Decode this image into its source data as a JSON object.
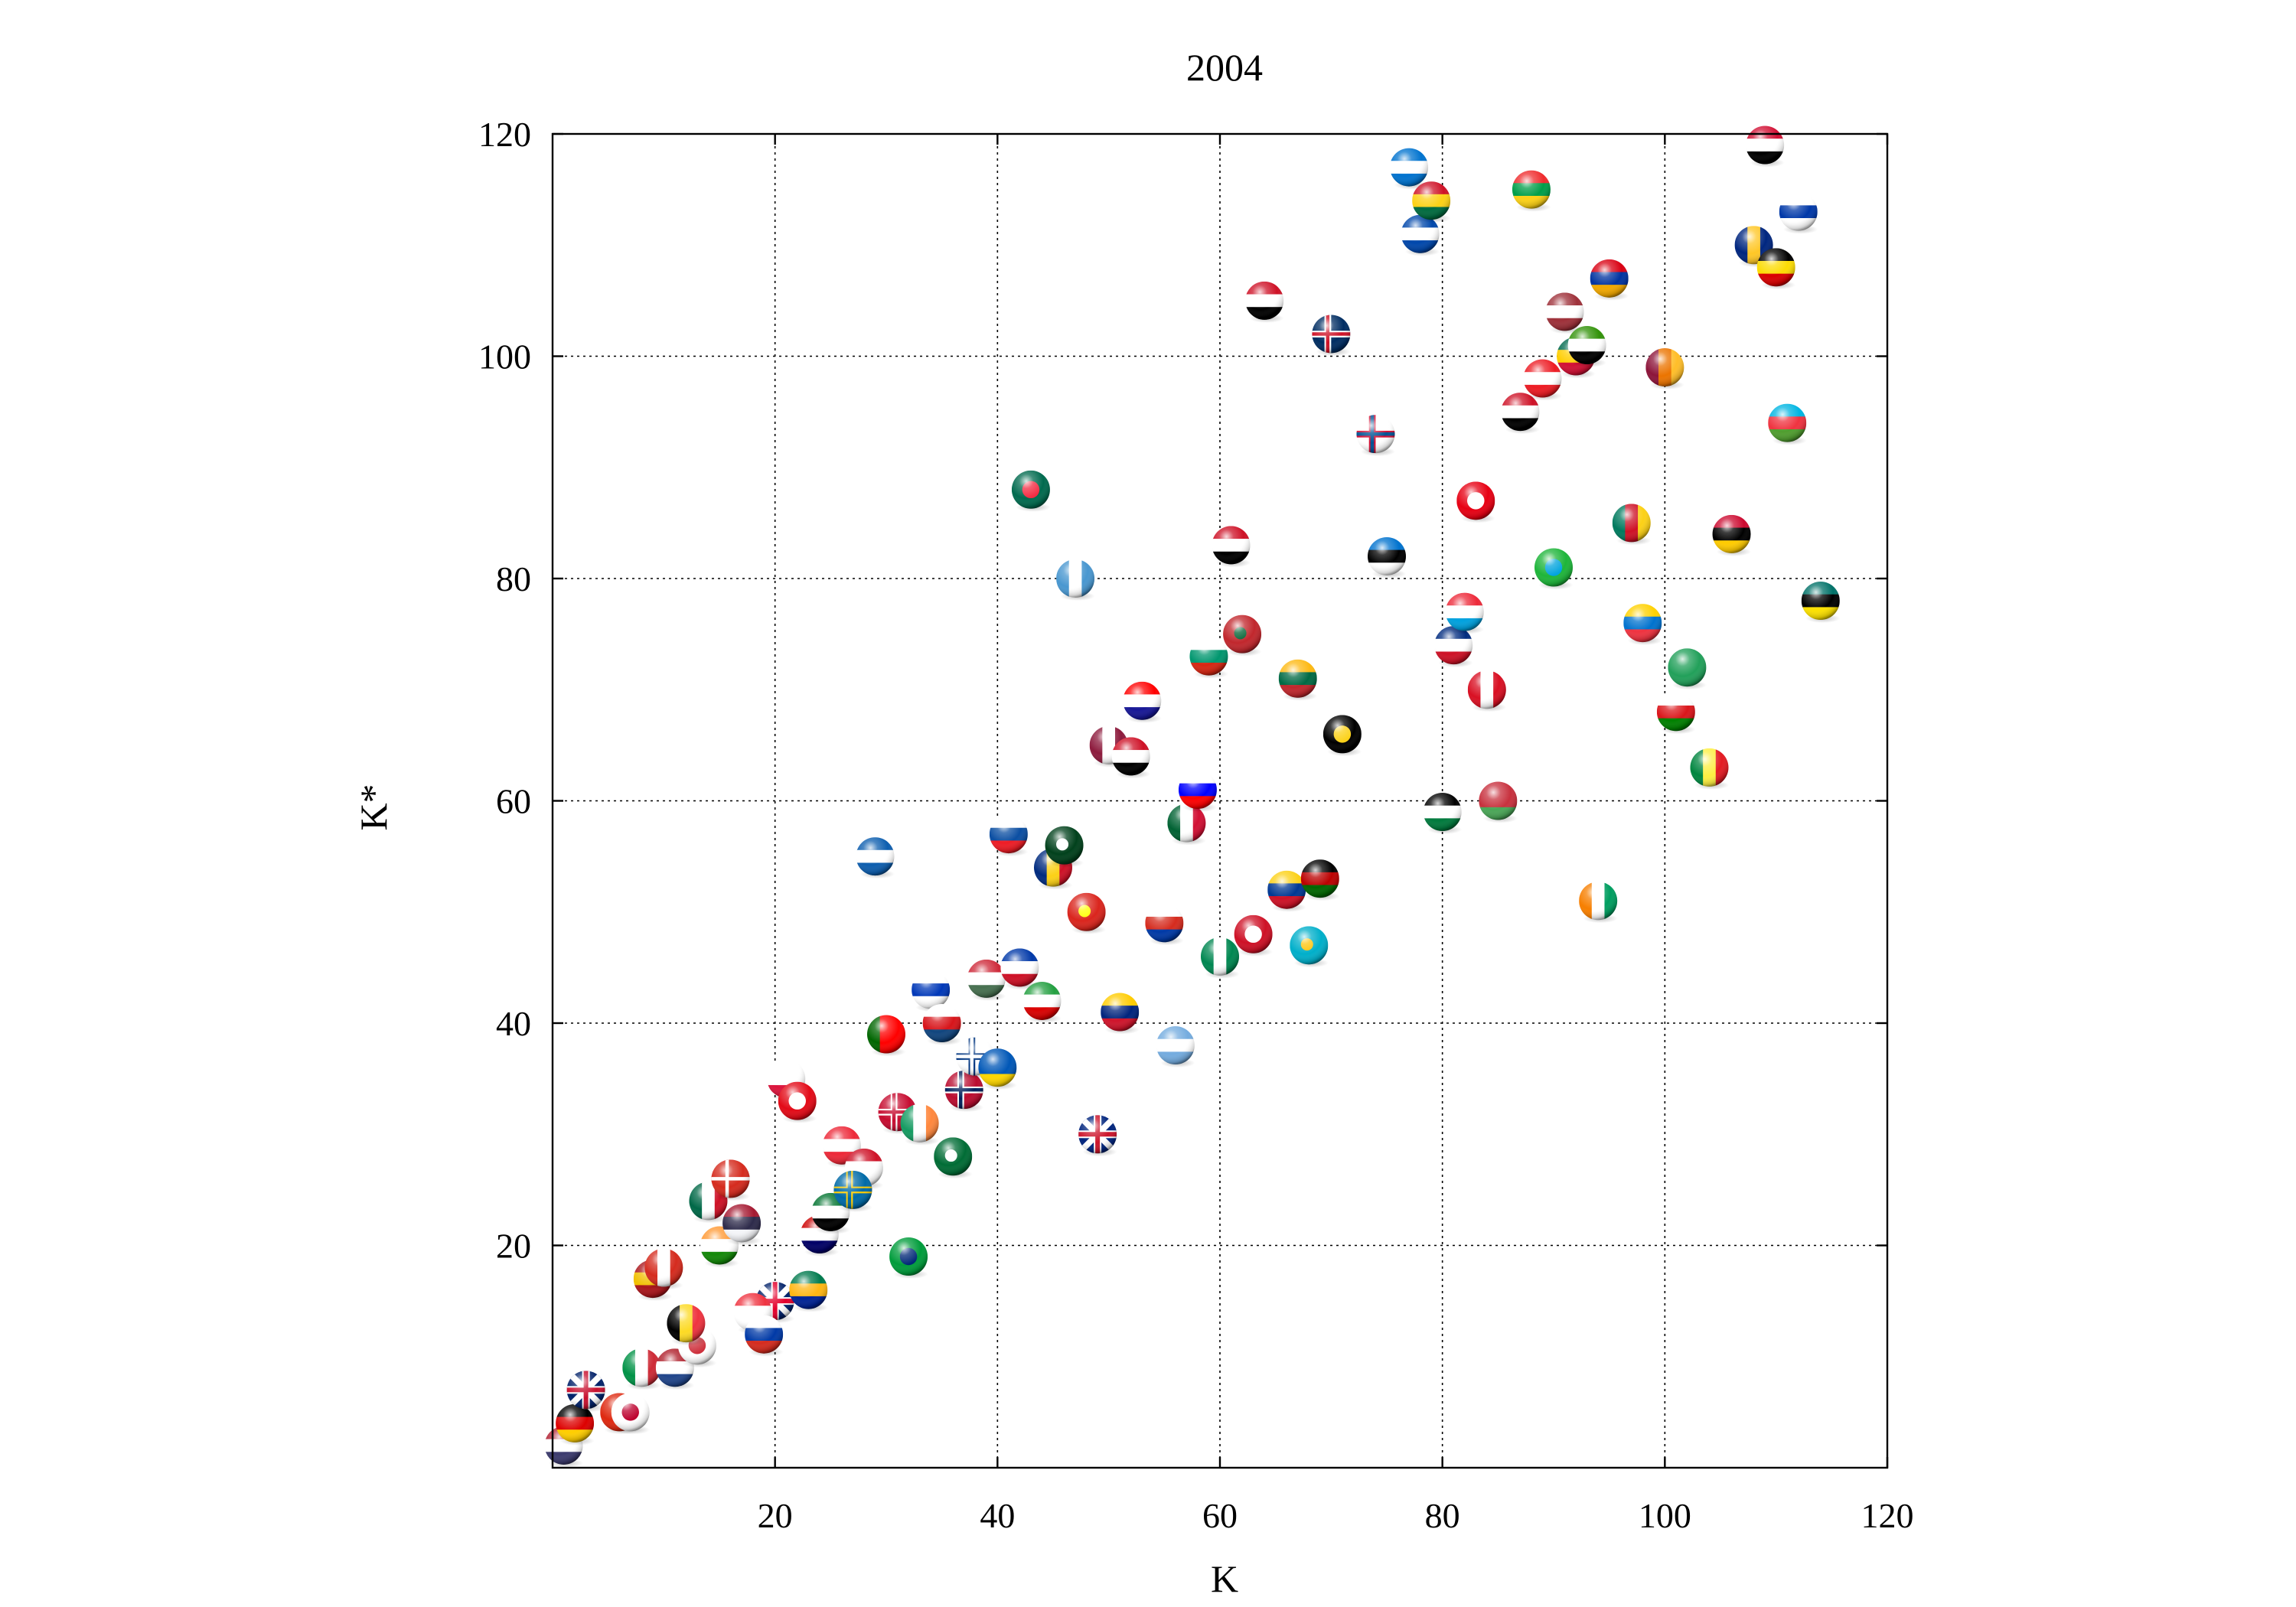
{
  "chart_data": {
    "type": "scatter",
    "title": "2004",
    "xlabel": "K",
    "ylabel": "K*",
    "xlim": [
      0,
      120
    ],
    "ylim": [
      0,
      120
    ],
    "xticks": [
      "20",
      "40",
      "60",
      "80",
      "100",
      "120"
    ],
    "yticks": [
      "20",
      "40",
      "60",
      "80",
      "100",
      "120"
    ],
    "grid": true,
    "marker": "country-flag-sphere",
    "points": [
      {
        "x": 1,
        "y": 2,
        "flag": "us",
        "colors": [
          "#b22234",
          "#ffffff",
          "#3c3b6e"
        ],
        "style": "h"
      },
      {
        "x": 2,
        "y": 4,
        "flag": "de",
        "colors": [
          "#000000",
          "#dd0000",
          "#ffce00"
        ],
        "style": "h"
      },
      {
        "x": 3,
        "y": 7,
        "flag": "uk",
        "colors": [
          "#012169",
          "#ffffff",
          "#c8102e"
        ],
        "style": "x"
      },
      {
        "x": 6,
        "y": 5,
        "flag": "cn",
        "colors": [
          "#de2910",
          "#de2910",
          "#ffde00"
        ],
        "style": "s"
      },
      {
        "x": 7,
        "y": 5,
        "flag": "jp",
        "colors": [
          "#ffffff",
          "#ffffff",
          "#bc002d"
        ],
        "style": "d"
      },
      {
        "x": 8,
        "y": 9,
        "flag": "it",
        "colors": [
          "#009246",
          "#ffffff",
          "#ce2b37"
        ],
        "style": "v"
      },
      {
        "x": 11,
        "y": 9,
        "flag": "nl",
        "colors": [
          "#ae1c28",
          "#ffffff",
          "#21468b"
        ],
        "style": "h"
      },
      {
        "x": 13,
        "y": 11,
        "flag": "kr",
        "colors": [
          "#ffffff",
          "#ffffff",
          "#cd2e3a"
        ],
        "style": "d"
      },
      {
        "x": 12,
        "y": 13,
        "flag": "be",
        "colors": [
          "#000000",
          "#fdda24",
          "#ef3340"
        ],
        "style": "v"
      },
      {
        "x": 9,
        "y": 17,
        "flag": "es",
        "colors": [
          "#aa151b",
          "#f1bf00",
          "#aa151b"
        ],
        "style": "h"
      },
      {
        "x": 10,
        "y": 18,
        "flag": "ca",
        "colors": [
          "#d52b1e",
          "#ffffff",
          "#d52b1e"
        ],
        "style": "v"
      },
      {
        "x": 15,
        "y": 20,
        "flag": "in",
        "colors": [
          "#ff9933",
          "#ffffff",
          "#138808"
        ],
        "style": "h"
      },
      {
        "x": 14,
        "y": 24,
        "flag": "mx",
        "colors": [
          "#006847",
          "#ffffff",
          "#ce1126"
        ],
        "style": "v"
      },
      {
        "x": 16,
        "y": 26,
        "flag": "ch",
        "colors": [
          "#d52b1e",
          "#d52b1e",
          "#ffffff"
        ],
        "style": "p"
      },
      {
        "x": 17,
        "y": 22,
        "flag": "th",
        "colors": [
          "#a51931",
          "#2d2a4a",
          "#f4f5f8"
        ],
        "style": "h"
      },
      {
        "x": 20,
        "y": 15,
        "flag": "au",
        "colors": [
          "#012169",
          "#012169",
          "#e4002b"
        ],
        "style": "x"
      },
      {
        "x": 18,
        "y": 14,
        "flag": "sg",
        "colors": [
          "#ef3340",
          "#ffffff",
          "#ffffff"
        ],
        "style": "h"
      },
      {
        "x": 19,
        "y": 12,
        "flag": "ru",
        "colors": [
          "#ffffff",
          "#0039a6",
          "#d52b1e"
        ],
        "style": "h"
      },
      {
        "x": 23,
        "y": 16,
        "flag": "za",
        "colors": [
          "#007a4d",
          "#ffb612",
          "#002395"
        ],
        "style": "h"
      },
      {
        "x": 21,
        "y": 35,
        "flag": "pl",
        "colors": [
          "#ffffff",
          "#ffffff",
          "#dc143c"
        ],
        "style": "h"
      },
      {
        "x": 22,
        "y": 33,
        "flag": "tr",
        "colors": [
          "#e30a17",
          "#e30a17",
          "#ffffff"
        ],
        "style": "d"
      },
      {
        "x": 24,
        "y": 21,
        "flag": "my",
        "colors": [
          "#cc0001",
          "#ffffff",
          "#010066"
        ],
        "style": "h"
      },
      {
        "x": 25,
        "y": 23,
        "flag": "ae",
        "colors": [
          "#00732f",
          "#ffffff",
          "#000000"
        ],
        "style": "h"
      },
      {
        "x": 26,
        "y": 29,
        "flag": "at",
        "colors": [
          "#ed2939",
          "#ffffff",
          "#ed2939"
        ],
        "style": "h"
      },
      {
        "x": 28,
        "y": 27,
        "flag": "id",
        "colors": [
          "#ce1126",
          "#ffffff",
          "#ffffff"
        ],
        "style": "h"
      },
      {
        "x": 27,
        "y": 25,
        "flag": "se",
        "colors": [
          "#006aa7",
          "#fecc00",
          "#006aa7"
        ],
        "style": "p"
      },
      {
        "x": 30,
        "y": 39,
        "flag": "pt",
        "colors": [
          "#006600",
          "#ff0000",
          "#ff0000"
        ],
        "style": "v"
      },
      {
        "x": 29,
        "y": 55,
        "flag": "gr",
        "colors": [
          "#0d5eaf",
          "#ffffff",
          "#0d5eaf"
        ],
        "style": "h"
      },
      {
        "x": 31,
        "y": 32,
        "flag": "dk",
        "colors": [
          "#c60c30",
          "#ffffff",
          "#c60c30"
        ],
        "style": "p"
      },
      {
        "x": 32,
        "y": 19,
        "flag": "br",
        "colors": [
          "#009c3b",
          "#ffdf00",
          "#002776"
        ],
        "style": "d"
      },
      {
        "x": 33,
        "y": 31,
        "flag": "ie",
        "colors": [
          "#169b62",
          "#ffffff",
          "#ff883e"
        ],
        "style": "v"
      },
      {
        "x": 34,
        "y": 43,
        "flag": "il",
        "colors": [
          "#ffffff",
          "#0038b8",
          "#ffffff"
        ],
        "style": "h"
      },
      {
        "x": 35,
        "y": 40,
        "flag": "cz",
        "colors": [
          "#ffffff",
          "#d7141a",
          "#11457e"
        ],
        "style": "h"
      },
      {
        "x": 36,
        "y": 28,
        "flag": "sa",
        "colors": [
          "#006c35",
          "#006c35",
          "#ffffff"
        ],
        "style": "s"
      },
      {
        "x": 37,
        "y": 34,
        "flag": "no",
        "colors": [
          "#ba0c2f",
          "#ffffff",
          "#00205b"
        ],
        "style": "p"
      },
      {
        "x": 38,
        "y": 37,
        "flag": "fi",
        "colors": [
          "#ffffff",
          "#003580",
          "#ffffff"
        ],
        "style": "p"
      },
      {
        "x": 39,
        "y": 44,
        "flag": "hu",
        "colors": [
          "#ce2939",
          "#ffffff",
          "#477050"
        ],
        "style": "h"
      },
      {
        "x": 40,
        "y": 36,
        "flag": "ua",
        "colors": [
          "#0057b7",
          "#0057b7",
          "#ffd700"
        ],
        "style": "h"
      },
      {
        "x": 41,
        "y": 57,
        "flag": "sk",
        "colors": [
          "#ffffff",
          "#0b4ea2",
          "#ee1c25"
        ],
        "style": "h"
      },
      {
        "x": 42,
        "y": 45,
        "flag": "ph",
        "colors": [
          "#0038a8",
          "#ffffff",
          "#ce1126"
        ],
        "style": "h"
      },
      {
        "x": 43,
        "y": 88,
        "flag": "bd",
        "colors": [
          "#006a4e",
          "#006a4e",
          "#f42a41"
        ],
        "style": "d"
      },
      {
        "x": 44,
        "y": 42,
        "flag": "ir",
        "colors": [
          "#239f40",
          "#ffffff",
          "#da0000"
        ],
        "style": "h"
      },
      {
        "x": 45,
        "y": 54,
        "flag": "ro",
        "colors": [
          "#002b7f",
          "#fcd116",
          "#ce1126"
        ],
        "style": "v"
      },
      {
        "x": 46,
        "y": 56,
        "flag": "pk",
        "colors": [
          "#01411c",
          "#01411c",
          "#ffffff"
        ],
        "style": "s"
      },
      {
        "x": 47,
        "y": 80,
        "flag": "gt",
        "colors": [
          "#4997d0",
          "#ffffff",
          "#4997d0"
        ],
        "style": "v"
      },
      {
        "x": 48,
        "y": 50,
        "flag": "vn",
        "colors": [
          "#da251d",
          "#da251d",
          "#ffff00"
        ],
        "style": "s"
      },
      {
        "x": 49,
        "y": 30,
        "flag": "nz",
        "colors": [
          "#00247d",
          "#00247d",
          "#cc142b"
        ],
        "style": "x"
      },
      {
        "x": 50,
        "y": 65,
        "flag": "qa",
        "colors": [
          "#8d1b3d",
          "#ffffff",
          "#8d1b3d"
        ],
        "style": "v"
      },
      {
        "x": 51,
        "y": 41,
        "flag": "ve",
        "colors": [
          "#ffcc00",
          "#00247d",
          "#cf142b"
        ],
        "style": "h"
      },
      {
        "x": 52,
        "y": 64,
        "flag": "kw",
        "colors": [
          "#ce1126",
          "#ffffff",
          "#000000"
        ],
        "style": "h"
      },
      {
        "x": 53,
        "y": 69,
        "flag": "hr",
        "colors": [
          "#ff0000",
          "#ffffff",
          "#171796"
        ],
        "style": "h"
      },
      {
        "x": 55,
        "y": 49,
        "flag": "cl",
        "colors": [
          "#ffffff",
          "#d52b1e",
          "#0039a6"
        ],
        "style": "h"
      },
      {
        "x": 56,
        "y": 38,
        "flag": "ar",
        "colors": [
          "#74acdf",
          "#ffffff",
          "#74acdf"
        ],
        "style": "h"
      },
      {
        "x": 57,
        "y": 58,
        "flag": "dz",
        "colors": [
          "#006233",
          "#ffffff",
          "#d21034"
        ],
        "style": "v"
      },
      {
        "x": 58,
        "y": 61,
        "flag": "si",
        "colors": [
          "#ffffff",
          "#0000ff",
          "#ff0000"
        ],
        "style": "h"
      },
      {
        "x": 59,
        "y": 73,
        "flag": "bg",
        "colors": [
          "#ffffff",
          "#00966e",
          "#d62612"
        ],
        "style": "h"
      },
      {
        "x": 60,
        "y": 46,
        "flag": "ng",
        "colors": [
          "#008751",
          "#ffffff",
          "#008751"
        ],
        "style": "v"
      },
      {
        "x": 61,
        "y": 83,
        "flag": "iq",
        "colors": [
          "#ce1126",
          "#ffffff",
          "#000000"
        ],
        "style": "h"
      },
      {
        "x": 62,
        "y": 75,
        "flag": "ma",
        "colors": [
          "#c1272d",
          "#c1272d",
          "#006233"
        ],
        "style": "s"
      },
      {
        "x": 63,
        "y": 48,
        "flag": "tt",
        "colors": [
          "#ce1126",
          "#000000",
          "#ffffff"
        ],
        "style": "d"
      },
      {
        "x": 64,
        "y": 105,
        "flag": "eg",
        "colors": [
          "#ce1126",
          "#ffffff",
          "#000000"
        ],
        "style": "h"
      },
      {
        "x": 66,
        "y": 52,
        "flag": "co",
        "colors": [
          "#fcd116",
          "#003893",
          "#ce1126"
        ],
        "style": "h"
      },
      {
        "x": 67,
        "y": 71,
        "flag": "lt",
        "colors": [
          "#fdb913",
          "#006a44",
          "#c1272d"
        ],
        "style": "h"
      },
      {
        "x": 68,
        "y": 47,
        "flag": "kz",
        "colors": [
          "#00afca",
          "#00afca",
          "#fec50c"
        ],
        "style": "s"
      },
      {
        "x": 69,
        "y": 53,
        "flag": "ke",
        "colors": [
          "#000000",
          "#bb0000",
          "#006600"
        ],
        "style": "h"
      },
      {
        "x": 70,
        "y": 102,
        "flag": "do",
        "colors": [
          "#002d62",
          "#ffffff",
          "#ce1126"
        ],
        "style": "p"
      },
      {
        "x": 71,
        "y": 66,
        "flag": "pg",
        "colors": [
          "#000000",
          "#ce1126",
          "#fcd116"
        ],
        "style": "d"
      },
      {
        "x": 74,
        "y": 93,
        "flag": "pa",
        "colors": [
          "#ffffff",
          "#d21034",
          "#005293"
        ],
        "style": "p"
      },
      {
        "x": 75,
        "y": 82,
        "flag": "ee",
        "colors": [
          "#0072ce",
          "#000000",
          "#ffffff"
        ],
        "style": "h"
      },
      {
        "x": 77,
        "y": 117,
        "flag": "hn",
        "colors": [
          "#0073cf",
          "#ffffff",
          "#0073cf"
        ],
        "style": "h"
      },
      {
        "x": 78,
        "y": 111,
        "flag": "sv",
        "colors": [
          "#0047ab",
          "#ffffff",
          "#0047ab"
        ],
        "style": "h"
      },
      {
        "x": 79,
        "y": 114,
        "flag": "gh",
        "colors": [
          "#ce1126",
          "#fcd116",
          "#006b3f"
        ],
        "style": "h"
      },
      {
        "x": 80,
        "y": 59,
        "flag": "jo",
        "colors": [
          "#000000",
          "#ffffff",
          "#007a3d"
        ],
        "style": "h"
      },
      {
        "x": 81,
        "y": 74,
        "flag": "cr",
        "colors": [
          "#002b7f",
          "#ffffff",
          "#ce1126"
        ],
        "style": "h"
      },
      {
        "x": 82,
        "y": 77,
        "flag": "lu",
        "colors": [
          "#ed2939",
          "#ffffff",
          "#00a1de"
        ],
        "style": "h"
      },
      {
        "x": 83,
        "y": 87,
        "flag": "tn",
        "colors": [
          "#e70013",
          "#e70013",
          "#ffffff"
        ],
        "style": "d"
      },
      {
        "x": 84,
        "y": 70,
        "flag": "pe",
        "colors": [
          "#d91023",
          "#ffffff",
          "#d91023"
        ],
        "style": "v"
      },
      {
        "x": 85,
        "y": 60,
        "flag": "by",
        "colors": [
          "#c8313e",
          "#c8313e",
          "#4aa657"
        ],
        "style": "h"
      },
      {
        "x": 87,
        "y": 95,
        "flag": "sy",
        "colors": [
          "#ce1126",
          "#ffffff",
          "#000000"
        ],
        "style": "h"
      },
      {
        "x": 88,
        "y": 115,
        "flag": "bf",
        "colors": [
          "#ef2b2d",
          "#009e49",
          "#fcd116"
        ],
        "style": "h"
      },
      {
        "x": 89,
        "y": 98,
        "flag": "lb",
        "colors": [
          "#ed1c24",
          "#ffffff",
          "#ed1c24"
        ],
        "style": "h"
      },
      {
        "x": 90,
        "y": 81,
        "flag": "tz",
        "colors": [
          "#1eb53a",
          "#000000",
          "#00a3dd"
        ],
        "style": "d"
      },
      {
        "x": 91,
        "y": 104,
        "flag": "lv",
        "colors": [
          "#9e3039",
          "#ffffff",
          "#9e3039"
        ],
        "style": "h"
      },
      {
        "x": 92,
        "y": 100,
        "flag": "tg",
        "colors": [
          "#006a4e",
          "#ffce00",
          "#d21034"
        ],
        "style": "h"
      },
      {
        "x": 93,
        "y": 101,
        "flag": "zw",
        "colors": [
          "#319208",
          "#ffffff",
          "#000000"
        ],
        "style": "h"
      },
      {
        "x": 94,
        "y": 51,
        "flag": "ci",
        "colors": [
          "#f77f00",
          "#ffffff",
          "#009e60"
        ],
        "style": "v"
      },
      {
        "x": 95,
        "y": 107,
        "flag": "am",
        "colors": [
          "#d90012",
          "#0033a0",
          "#f2a800"
        ],
        "style": "h"
      },
      {
        "x": 97,
        "y": 85,
        "flag": "cm",
        "colors": [
          "#007a5e",
          "#ce1126",
          "#fcd116"
        ],
        "style": "v"
      },
      {
        "x": 98,
        "y": 76,
        "flag": "ec",
        "colors": [
          "#ffd100",
          "#0072ce",
          "#ef3340"
        ],
        "style": "h"
      },
      {
        "x": 100,
        "y": 99,
        "flag": "lk",
        "colors": [
          "#8d153a",
          "#eb7400",
          "#ffbe29"
        ],
        "style": "v"
      },
      {
        "x": 101,
        "y": 68,
        "flag": "om",
        "colors": [
          "#ffffff",
          "#db161b",
          "#008000"
        ],
        "style": "h"
      },
      {
        "x": 102,
        "y": 72,
        "flag": "sa2",
        "colors": [
          "#22a05a",
          "#22a05a",
          "#22a05a"
        ],
        "style": "s"
      },
      {
        "x": 104,
        "y": 63,
        "flag": "sn",
        "colors": [
          "#00853f",
          "#fdef42",
          "#e31b23"
        ],
        "style": "v"
      },
      {
        "x": 106,
        "y": 84,
        "flag": "ao",
        "colors": [
          "#cc092f",
          "#000000",
          "#ffcb00"
        ],
        "style": "h"
      },
      {
        "x": 108,
        "y": 110,
        "flag": "bb",
        "colors": [
          "#00267f",
          "#ffc726",
          "#00267f"
        ],
        "style": "v"
      },
      {
        "x": 109,
        "y": 119,
        "flag": "sd",
        "colors": [
          "#d21034",
          "#ffffff",
          "#000000"
        ],
        "style": "h"
      },
      {
        "x": 110,
        "y": 108,
        "flag": "ug",
        "colors": [
          "#000000",
          "#fcdc04",
          "#d90000"
        ],
        "style": "h"
      },
      {
        "x": 111,
        "y": 94,
        "flag": "az",
        "colors": [
          "#00b5e2",
          "#ef3340",
          "#509e2f"
        ],
        "style": "h"
      },
      {
        "x": 112,
        "y": 113,
        "flag": "uy",
        "colors": [
          "#ffffff",
          "#0038a8",
          "#ffffff"
        ],
        "style": "h"
      },
      {
        "x": 114,
        "y": 78,
        "flag": "mz",
        "colors": [
          "#007168",
          "#000000",
          "#fce100"
        ],
        "style": "h"
      }
    ]
  }
}
